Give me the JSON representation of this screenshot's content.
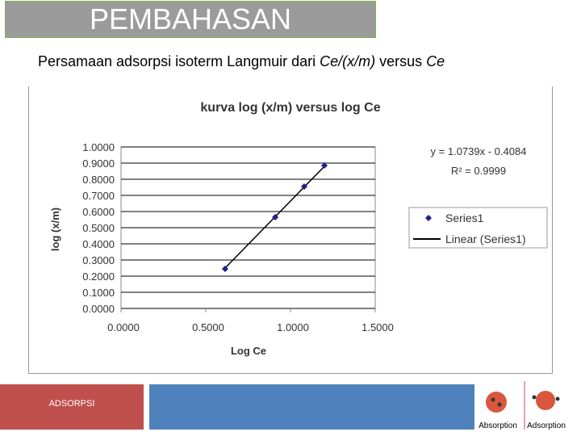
{
  "slide": {
    "title": "PEMBAHASAN",
    "subtitle": [
      "Persamaan adsorpsi isoterm Langmuir dari ",
      "Ce/(x/m)",
      " versus ",
      "Ce"
    ],
    "footer": "ADSORPSI",
    "logos": [
      "Absorption",
      "Adsorption"
    ]
  },
  "chart_data": {
    "type": "scatter",
    "title": "kurva log (x/m) versus log Ce",
    "x_label": "Log Ce",
    "y_label": "log (x/m)",
    "annotations": [
      "y = 1.0739x - 0.4084",
      "R² = 0.9999"
    ],
    "series": [
      {
        "name": "Series1",
        "type": "scatter",
        "color": "#1f1f8f",
        "x": [
          0.614,
          0.91,
          1.081,
          1.2
        ],
        "values": [
          0.245,
          0.565,
          0.755,
          0.885
        ]
      },
      {
        "name": "Linear (Series1)",
        "type": "line",
        "color": "#000000",
        "x": [
          0.614,
          1.2
        ],
        "values": [
          0.25,
          0.88
        ]
      }
    ],
    "xlim": [
      0,
      1.5
    ],
    "xticks": [
      {
        "value": 0,
        "label": "0.0000"
      },
      {
        "value": 0.5,
        "label": "0.5000"
      },
      {
        "value": 1,
        "label": "1.0000"
      },
      {
        "value": 1.5,
        "label": "1.5000"
      }
    ],
    "ylim": [
      0,
      1
    ],
    "yticks": [
      {
        "value": 0,
        "label": "0.0000"
      },
      {
        "value": 0.1,
        "label": "0.1000"
      },
      {
        "value": 0.2,
        "label": "0.2000"
      },
      {
        "value": 0.3,
        "label": "0.3000"
      },
      {
        "value": 0.4,
        "label": "0.4000"
      },
      {
        "value": 0.5,
        "label": "0.5000"
      },
      {
        "value": 0.6,
        "label": "0.6000"
      },
      {
        "value": 0.7,
        "label": "0.7000"
      },
      {
        "value": 0.8,
        "label": "0.8000"
      },
      {
        "value": 0.9,
        "label": "0.9000"
      },
      {
        "value": 1,
        "label": "1.0000"
      }
    ],
    "grid": true
  }
}
